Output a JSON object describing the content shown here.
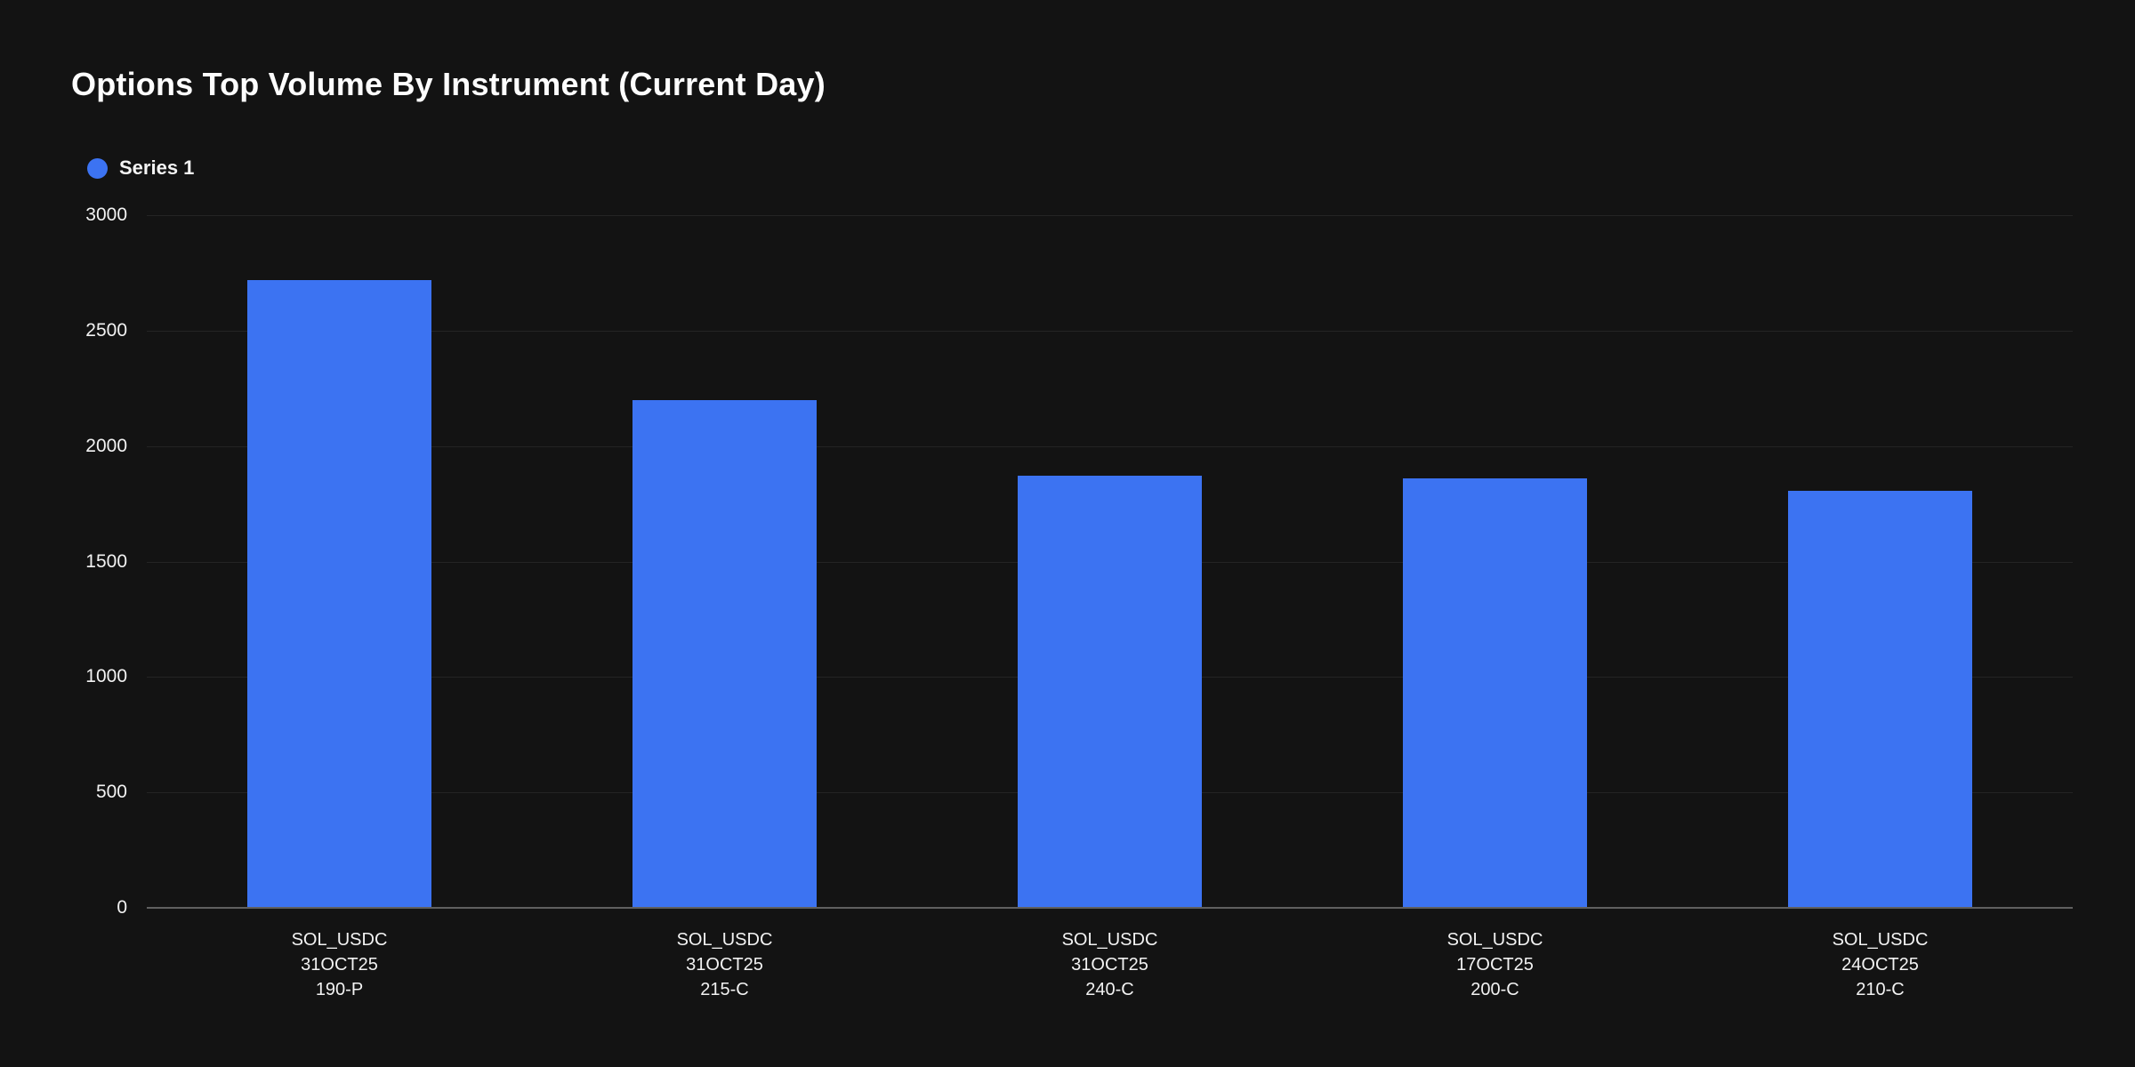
{
  "page": {
    "background": "#131313"
  },
  "chart_data": {
    "type": "bar",
    "title": "Options Top Volume By Instrument (Current Day)",
    "categories": [
      [
        "SOL_USDC",
        "31OCT25",
        "190-P"
      ],
      [
        "SOL_USDC",
        "31OCT25",
        "215-C"
      ],
      [
        "SOL_USDC",
        "31OCT25",
        "240-C"
      ],
      [
        "SOL_USDC",
        "17OCT25",
        "200-C"
      ],
      [
        "SOL_USDC",
        "24OCT25",
        "210-C"
      ]
    ],
    "series": [
      {
        "name": "Series 1",
        "color": "#3C73F2",
        "values": [
          2720,
          2200,
          1870,
          1860,
          1805
        ]
      }
    ],
    "xlabel": "",
    "ylabel": "",
    "ylim": [
      0,
      3000
    ],
    "yticks": [
      0,
      500,
      1000,
      1500,
      2000,
      2500,
      3000
    ],
    "grid": "horizontal",
    "legend_position": "top-left",
    "colors": {
      "text": "#f2f2f2",
      "grid": "#242424",
      "axis": "#5f5f5f",
      "background": "#131313"
    }
  }
}
